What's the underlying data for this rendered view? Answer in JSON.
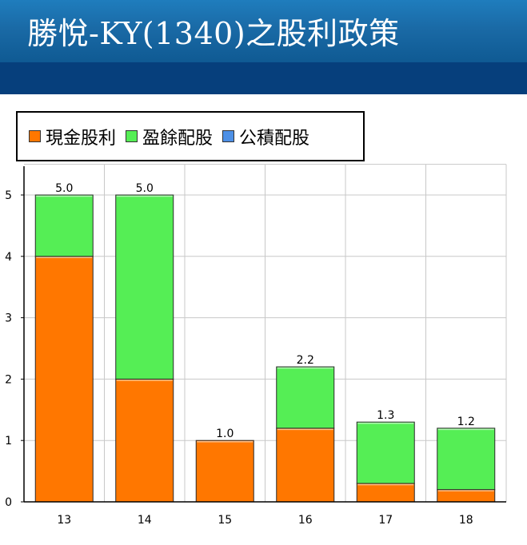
{
  "page": {
    "title": "勝悅-KY(1340)之股利政策"
  },
  "colors": {
    "title_bar": "#1a6aa6",
    "title_band": "#063f7c",
    "cash_dividend": "#ff7700",
    "stock_dividend_earnings": "#55ee55",
    "stock_dividend_capital": "#4d90e6",
    "grid": "#c8c8c8"
  },
  "legend": {
    "items": [
      {
        "label": "現金股利",
        "color": "#ff7700"
      },
      {
        "label": "盈餘配股",
        "color": "#55ee55"
      },
      {
        "label": "公積配股",
        "color": "#4d90e6"
      }
    ]
  },
  "chart_data": {
    "type": "bar",
    "stacked": true,
    "categories": [
      "13",
      "14",
      "15",
      "16",
      "17",
      "18"
    ],
    "series": [
      {
        "name": "現金股利",
        "color": "#ff7700",
        "values": [
          4.0,
          2.0,
          1.0,
          1.2,
          0.3,
          0.2
        ]
      },
      {
        "name": "盈餘配股",
        "color": "#55ee55",
        "values": [
          1.0,
          3.0,
          0.0,
          1.0,
          1.0,
          1.0
        ]
      },
      {
        "name": "公積配股",
        "color": "#4d90e6",
        "values": [
          0.0,
          0.0,
          0.0,
          0.0,
          0.0,
          0.0
        ]
      }
    ],
    "totals": [
      "5.0",
      "5.0",
      "1.0",
      "2.2",
      "1.3",
      "1.2"
    ],
    "ylim": [
      0,
      5.5
    ],
    "yticks": [
      0,
      1,
      2,
      3,
      4,
      5
    ],
    "grid": true,
    "legend_position": "top-left"
  }
}
